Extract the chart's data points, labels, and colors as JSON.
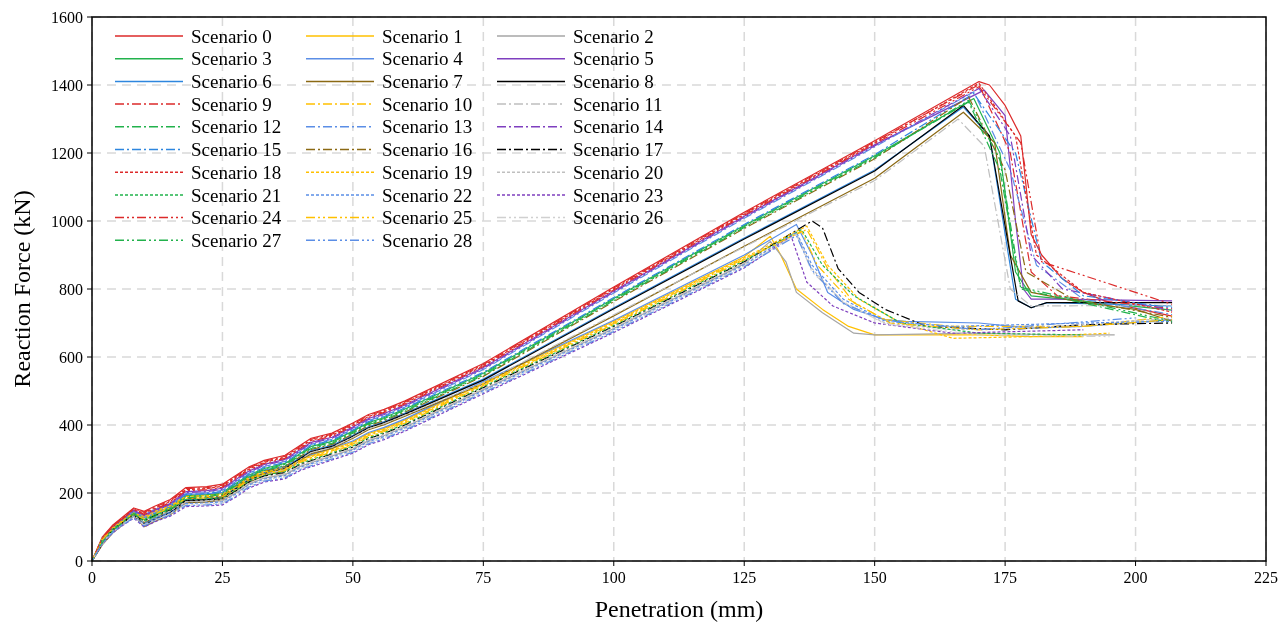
{
  "chart_data": {
    "type": "line",
    "xlabel": "Penetration (mm)",
    "ylabel": "Reaction Force (kN)",
    "xlim": [
      0,
      225
    ],
    "ylim": [
      0,
      1600
    ],
    "xticks": [
      0,
      25,
      50,
      75,
      100,
      125,
      150,
      175,
      200,
      225
    ],
    "yticks": [
      0,
      200,
      400,
      600,
      800,
      1000,
      1200,
      1400,
      1600
    ],
    "grid": true,
    "legend": "top left",
    "series": [
      {
        "name": "Scenario 0",
        "color": "#dc2a2a",
        "line_style": "solid",
        "x": [
          0,
          2,
          4,
          6,
          8,
          10,
          12,
          15,
          18,
          22,
          25,
          28,
          30,
          33,
          37,
          40,
          42,
          46,
          50,
          53,
          56,
          60,
          75,
          100,
          125,
          150,
          170,
          172,
          175,
          178,
          180,
          182,
          186,
          190,
          195,
          207
        ],
        "values": [
          0,
          71,
          106,
          131,
          156,
          146,
          161,
          181,
          216,
          219,
          226,
          256,
          276,
          296,
          311,
          341,
          361,
          376,
          406,
          431,
          446,
          471,
          581,
          806,
          1026,
          1236,
          1410,
          1400,
          1340,
          1250,
          960,
          900,
          830,
          790,
          760,
          720
        ]
      },
      {
        "name": "Scenario 1",
        "color": "#ffc000",
        "line_style": "solid",
        "x": [
          0,
          2,
          4,
          6,
          8,
          10,
          12,
          15,
          18,
          22,
          25,
          28,
          30,
          33,
          37,
          40,
          42,
          46,
          50,
          53,
          56,
          60,
          75,
          100,
          125,
          130,
          132,
          135,
          140,
          145,
          150,
          160,
          170,
          180,
          190
        ],
        "values": [
          0,
          68,
          100,
          123,
          143,
          133,
          148,
          165,
          193,
          195,
          198,
          225,
          247,
          265,
          275,
          300,
          310,
          330,
          350,
          375,
          390,
          415,
          525,
          705,
          895,
          955,
          900,
          800,
          740,
          690,
          665,
          665,
          665,
          660,
          660
        ]
      },
      {
        "name": "Scenario 2",
        "color": "#a6a6a6",
        "line_style": "solid",
        "x": [
          0,
          2,
          4,
          6,
          8,
          10,
          12,
          15,
          18,
          22,
          25,
          28,
          30,
          33,
          37,
          40,
          42,
          46,
          50,
          53,
          56,
          60,
          75,
          100,
          125,
          130,
          133,
          135,
          140,
          146,
          150,
          170,
          185,
          196
        ],
        "values": [
          0,
          57,
          89,
          112,
          132,
          112,
          127,
          144,
          172,
          174,
          177,
          204,
          226,
          244,
          254,
          279,
          289,
          309,
          329,
          354,
          369,
          394,
          504,
          684,
          874,
          940,
          880,
          790,
          730,
          670,
          665,
          670,
          665,
          665
        ]
      },
      {
        "name": "Scenario 3",
        "color": "#22b24c",
        "line_style": "solid",
        "x": [
          0,
          2,
          4,
          6,
          8,
          10,
          12,
          15,
          18,
          22,
          25,
          28,
          30,
          33,
          37,
          40,
          42,
          46,
          50,
          53,
          56,
          60,
          75,
          100,
          125,
          150,
          169,
          174,
          177,
          180,
          207
        ],
        "values": [
          0,
          58,
          93,
          118,
          143,
          122,
          137,
          157,
          192,
          195,
          202,
          232,
          252,
          272,
          287,
          317,
          337,
          352,
          382,
          407,
          422,
          447,
          552,
          772,
          987,
          1192,
          1360,
          1200,
          850,
          780,
          738
        ]
      },
      {
        "name": "Scenario 4",
        "color": "#5b8ee6",
        "line_style": "solid",
        "x": [
          0,
          2,
          4,
          6,
          8,
          10,
          12,
          15,
          18,
          22,
          25,
          28,
          30,
          33,
          37,
          40,
          42,
          46,
          50,
          53,
          56,
          60,
          75,
          100,
          125,
          135,
          138,
          141,
          146,
          152,
          156,
          170,
          180,
          190,
          207
        ],
        "values": [
          0,
          69,
          101,
          124,
          144,
          136,
          151,
          168,
          196,
          198,
          201,
          228,
          250,
          268,
          278,
          303,
          313,
          333,
          353,
          378,
          393,
          418,
          528,
          708,
          900,
          990,
          900,
          790,
          740,
          710,
          705,
          700,
          685,
          690,
          710
        ]
      },
      {
        "name": "Scenario 5",
        "color": "#7f3fbf",
        "line_style": "solid",
        "x": [
          0,
          2,
          4,
          6,
          8,
          10,
          12,
          15,
          18,
          22,
          25,
          28,
          30,
          33,
          37,
          40,
          42,
          46,
          50,
          53,
          56,
          60,
          75,
          100,
          125,
          150,
          171,
          175,
          177,
          178.5,
          180,
          185,
          207
        ],
        "values": [
          0,
          65,
          100,
          125,
          150,
          134,
          149,
          169,
          204,
          207,
          214,
          244,
          264,
          284,
          299,
          329,
          349,
          364,
          394,
          419,
          434,
          459,
          569,
          794,
          1014,
          1224,
          1385,
          1310,
          1000,
          800,
          770,
          770,
          765
        ]
      },
      {
        "name": "Scenario 6",
        "color": "#2e86de",
        "line_style": "solid",
        "x": [
          0,
          2,
          4,
          6,
          8,
          10,
          12,
          15,
          18,
          22,
          25,
          28,
          30,
          33,
          37,
          40,
          42,
          46,
          50,
          53,
          56,
          60,
          75,
          100,
          125,
          150,
          167,
          172,
          177,
          180,
          183,
          207
        ],
        "values": [
          0,
          52,
          87,
          112,
          137,
          110,
          125,
          145,
          180,
          183,
          190,
          220,
          240,
          260,
          275,
          305,
          325,
          340,
          370,
          395,
          410,
          435,
          535,
          745,
          950,
          1150,
          1335,
          1250,
          770,
          745,
          760,
          750
        ]
      },
      {
        "name": "Scenario 7",
        "color": "#8b6914",
        "line_style": "solid",
        "x": [
          0,
          2,
          4,
          6,
          8,
          10,
          12,
          15,
          18,
          22,
          25,
          28,
          30,
          33,
          37,
          40,
          42,
          46,
          50,
          53,
          56,
          60,
          75,
          100,
          125,
          150,
          167,
          173,
          176,
          180,
          190,
          200,
          207
        ],
        "values": [
          0,
          48,
          83,
          108,
          133,
          101,
          116,
          136,
          171,
          174,
          181,
          211,
          231,
          251,
          266,
          296,
          316,
          331,
          361,
          386,
          401,
          426,
          521,
          721,
          926,
          1126,
          1320,
          1230,
          900,
          790,
          760,
          740,
          705
        ]
      },
      {
        "name": "Scenario 8",
        "color": "#000000",
        "line_style": "solid",
        "x": [
          0,
          2,
          4,
          6,
          8,
          10,
          12,
          15,
          18,
          22,
          25,
          28,
          30,
          33,
          37,
          40,
          42,
          46,
          50,
          53,
          56,
          60,
          75,
          100,
          125,
          150,
          167,
          172,
          177.5,
          180,
          183,
          207
        ],
        "values": [
          0,
          51,
          86,
          111,
          136,
          107,
          122,
          142,
          177,
          180,
          187,
          217,
          237,
          257,
          272,
          302,
          322,
          337,
          367,
          392,
          407,
          432,
          532,
          742,
          947,
          1147,
          1340,
          1250,
          765,
          745,
          760,
          760
        ]
      },
      {
        "name": "Scenario 9",
        "color": "#dc2a2a",
        "line_style": "dashdot",
        "x": [
          0,
          2,
          4,
          6,
          8,
          10,
          12,
          15,
          18,
          22,
          25,
          28,
          30,
          33,
          37,
          40,
          42,
          46,
          50,
          53,
          56,
          60,
          75,
          100,
          125,
          150,
          170,
          176,
          180,
          185,
          207
        ],
        "values": [
          0,
          69,
          104,
          129,
          154,
          143,
          158,
          178,
          213,
          216,
          223,
          253,
          273,
          293,
          308,
          338,
          358,
          373,
          403,
          428,
          443,
          468,
          578,
          803,
          1023,
          1233,
          1401,
          1200,
          850,
          780,
          742
        ]
      },
      {
        "name": "Scenario 10",
        "color": "#ffc000",
        "line_style": "dashdot",
        "x": [
          0,
          2,
          4,
          6,
          8,
          10,
          12,
          15,
          18,
          22,
          25,
          28,
          30,
          33,
          37,
          40,
          42,
          46,
          50,
          53,
          56,
          60,
          75,
          100,
          125,
          137,
          141,
          146,
          152,
          165,
          190,
          207
        ],
        "values": [
          0,
          65,
          97,
          120,
          140,
          127,
          142,
          159,
          187,
          189,
          192,
          219,
          241,
          259,
          269,
          294,
          304,
          324,
          344,
          369,
          384,
          409,
          519,
          699,
          889,
          975,
          860,
          760,
          710,
          690,
          690,
          720
        ]
      },
      {
        "name": "Scenario 11",
        "color": "#bfbfbf",
        "line_style": "dashdot",
        "x": [
          0,
          2,
          4,
          6,
          8,
          10,
          12,
          15,
          18,
          22,
          25,
          28,
          30,
          33,
          37,
          40,
          42,
          46,
          50,
          53,
          56,
          60,
          75,
          100,
          125,
          150,
          166,
          171,
          176,
          180,
          207
        ],
        "values": [
          0,
          49,
          84,
          109,
          134,
          104,
          119,
          139,
          174,
          177,
          184,
          214,
          234,
          254,
          269,
          299,
          319,
          334,
          364,
          389,
          404,
          429,
          524,
          724,
          924,
          1119,
          1300,
          1220,
          800,
          750,
          752
        ]
      },
      {
        "name": "Scenario 12",
        "color": "#22b24c",
        "line_style": "dashdot",
        "x": [
          0,
          2,
          4,
          6,
          8,
          10,
          12,
          15,
          18,
          22,
          25,
          28,
          30,
          33,
          37,
          40,
          42,
          46,
          50,
          53,
          56,
          60,
          75,
          100,
          125,
          150,
          168,
          174,
          178,
          207
        ],
        "values": [
          0,
          57,
          92,
          117,
          142,
          119,
          134,
          154,
          189,
          192,
          199,
          229,
          249,
          269,
          284,
          314,
          334,
          349,
          379,
          404,
          419,
          444,
          549,
          769,
          984,
          1189,
          1350,
          1150,
          800,
          700
        ]
      },
      {
        "name": "Scenario 13",
        "color": "#5b8ee6",
        "line_style": "dashdot",
        "x": [
          0,
          2,
          4,
          6,
          8,
          10,
          12,
          15,
          18,
          22,
          25,
          28,
          30,
          33,
          37,
          40,
          42,
          46,
          50,
          53,
          56,
          60,
          75,
          100,
          125,
          150,
          169,
          176,
          181,
          190,
          207
        ],
        "values": [
          0,
          62,
          97,
          122,
          147,
          128,
          143,
          163,
          198,
          201,
          208,
          238,
          258,
          278,
          293,
          323,
          343,
          358,
          388,
          413,
          428,
          453,
          563,
          788,
          1008,
          1218,
          1380,
          1150,
          870,
          770,
          725
        ]
      },
      {
        "name": "Scenario 14",
        "color": "#7f3fbf",
        "line_style": "dashdot",
        "x": [
          0,
          2,
          4,
          6,
          8,
          10,
          12,
          15,
          18,
          22,
          25,
          28,
          30,
          33,
          37,
          40,
          42,
          46,
          50,
          53,
          56,
          60,
          75,
          100,
          125,
          150,
          170,
          176,
          180,
          186,
          207
        ],
        "values": [
          0,
          63,
          98,
          123,
          148,
          131,
          146,
          166,
          201,
          204,
          211,
          241,
          261,
          281,
          296,
          326,
          346,
          361,
          391,
          416,
          431,
          456,
          566,
          791,
          1011,
          1221,
          1390,
          1250,
          900,
          800,
          737
        ]
      },
      {
        "name": "Scenario 15",
        "color": "#2e86de",
        "line_style": "dashdot",
        "x": [
          0,
          2,
          4,
          6,
          8,
          10,
          12,
          15,
          18,
          22,
          25,
          28,
          30,
          33,
          37,
          40,
          42,
          46,
          50,
          53,
          56,
          60,
          75,
          100,
          125,
          150,
          169,
          177,
          182,
          190,
          207
        ],
        "values": [
          0,
          60,
          95,
          120,
          145,
          125,
          140,
          160,
          195,
          198,
          205,
          235,
          255,
          275,
          290,
          320,
          340,
          355,
          385,
          410,
          425,
          450,
          555,
          775,
          990,
          1195,
          1375,
          1200,
          880,
          780,
          745
        ]
      },
      {
        "name": "Scenario 16",
        "color": "#8b6914",
        "line_style": "dashdot",
        "x": [
          0,
          2,
          4,
          6,
          8,
          10,
          12,
          15,
          18,
          22,
          25,
          28,
          30,
          33,
          37,
          40,
          42,
          46,
          50,
          53,
          56,
          60,
          75,
          100,
          125,
          150,
          168,
          175,
          179,
          188,
          207
        ],
        "values": [
          0,
          54,
          89,
          114,
          139,
          113,
          128,
          148,
          183,
          186,
          193,
          223,
          243,
          263,
          278,
          308,
          328,
          343,
          373,
          398,
          413,
          438,
          543,
          763,
          978,
          1183,
          1365,
          1150,
          850,
          770,
          717
        ]
      },
      {
        "name": "Scenario 17",
        "color": "#000000",
        "line_style": "dashdot",
        "x": [
          0,
          2,
          4,
          6,
          8,
          10,
          12,
          15,
          18,
          22,
          25,
          28,
          30,
          33,
          37,
          40,
          42,
          46,
          50,
          53,
          56,
          60,
          75,
          100,
          125,
          138,
          140,
          143,
          147,
          152,
          160,
          175,
          190,
          207
        ],
        "values": [
          0,
          60,
          92,
          115,
          135,
          118,
          133,
          150,
          178,
          180,
          183,
          210,
          232,
          250,
          260,
          285,
          295,
          315,
          335,
          360,
          375,
          400,
          510,
          690,
          880,
          1000,
          980,
          860,
          790,
          740,
          690,
          680,
          695,
          700
        ]
      },
      {
        "name": "Scenario 18",
        "color": "#dc2a2a",
        "line_style": "dotted",
        "x": [
          0,
          2,
          4,
          6,
          8,
          10,
          12,
          15,
          18,
          22,
          25,
          28,
          30,
          33,
          37,
          40,
          42,
          46,
          50,
          53,
          56,
          60,
          75,
          100,
          125,
          150,
          170,
          177,
          181,
          190,
          207
        ],
        "values": [
          0,
          68,
          103,
          128,
          153,
          140,
          155,
          175,
          210,
          213,
          220,
          250,
          270,
          290,
          305,
          335,
          355,
          370,
          400,
          425,
          440,
          465,
          575,
          800,
          1020,
          1230,
          1405,
          1250,
          900,
          790,
          732
        ]
      },
      {
        "name": "Scenario 19",
        "color": "#ffc000",
        "line_style": "dotted",
        "x": [
          0,
          2,
          4,
          6,
          8,
          10,
          12,
          15,
          18,
          22,
          25,
          28,
          30,
          33,
          37,
          40,
          42,
          46,
          50,
          53,
          56,
          60,
          75,
          100,
          125,
          137,
          141,
          147,
          155,
          165,
          180,
          195
        ],
        "values": [
          0,
          66,
          98,
          121,
          141,
          130,
          145,
          162,
          190,
          192,
          195,
          222,
          244,
          262,
          272,
          297,
          307,
          327,
          347,
          372,
          387,
          412,
          522,
          702,
          892,
          985,
          870,
          770,
          700,
          655,
          660,
          670
        ]
      },
      {
        "name": "Scenario 20",
        "color": "#bfbfbf",
        "line_style": "dotted",
        "x": [
          0,
          2,
          4,
          6,
          8,
          10,
          12,
          15,
          18,
          22,
          25,
          28,
          30,
          33,
          37,
          40,
          42,
          46,
          50,
          53,
          56,
          60,
          75,
          100,
          125,
          135,
          138,
          144,
          152,
          165,
          185,
          207
        ],
        "values": [
          0,
          58,
          90,
          113,
          133,
          115,
          130,
          147,
          175,
          177,
          180,
          207,
          229,
          247,
          257,
          282,
          292,
          312,
          332,
          357,
          372,
          397,
          507,
          687,
          877,
          963,
          860,
          760,
          700,
          680,
          690,
          715
        ]
      },
      {
        "name": "Scenario 21",
        "color": "#22b24c",
        "line_style": "dotted",
        "x": [
          0,
          2,
          4,
          6,
          8,
          10,
          12,
          15,
          18,
          22,
          25,
          28,
          30,
          33,
          37,
          40,
          42,
          46,
          50,
          53,
          56,
          60,
          75,
          100,
          125,
          136,
          140,
          146,
          155,
          170,
          190
        ],
        "values": [
          0,
          62,
          94,
          117,
          137,
          121,
          136,
          153,
          181,
          183,
          186,
          213,
          235,
          253,
          263,
          288,
          298,
          318,
          338,
          363,
          378,
          403,
          513,
          693,
          883,
          975,
          870,
          780,
          700,
          670,
          665
        ]
      },
      {
        "name": "Scenario 22",
        "color": "#5b8ee6",
        "line_style": "dotted",
        "x": [
          0,
          2,
          4,
          6,
          8,
          10,
          12,
          15,
          18,
          22,
          25,
          28,
          30,
          33,
          37,
          40,
          42,
          46,
          50,
          53,
          56,
          60,
          75,
          100,
          125,
          135,
          138,
          144,
          152,
          165,
          190,
          207
        ],
        "values": [
          0,
          55,
          87,
          110,
          130,
          109,
          124,
          141,
          169,
          171,
          174,
          201,
          223,
          241,
          251,
          276,
          286,
          306,
          326,
          351,
          366,
          391,
          501,
          681,
          871,
          967,
          870,
          770,
          705,
          690,
          700,
          705
        ]
      },
      {
        "name": "Scenario 23",
        "color": "#7f3fbf",
        "line_style": "dotted",
        "x": [
          0,
          2,
          4,
          6,
          8,
          10,
          12,
          15,
          18,
          22,
          25,
          28,
          30,
          33,
          37,
          40,
          42,
          46,
          50,
          53,
          56,
          60,
          75,
          100,
          125,
          134,
          137,
          142,
          150,
          165,
          190
        ],
        "values": [
          0,
          51,
          83,
          106,
          126,
          100,
          115,
          132,
          160,
          162,
          165,
          192,
          214,
          232,
          242,
          267,
          277,
          297,
          317,
          342,
          357,
          382,
          492,
          672,
          862,
          955,
          820,
          750,
          700,
          670,
          680
        ]
      },
      {
        "name": "Scenario 24",
        "color": "#dc2a2a",
        "line_style": "dashdotdot",
        "x": [
          0,
          2,
          4,
          6,
          8,
          10,
          12,
          15,
          18,
          22,
          25,
          28,
          30,
          33,
          37,
          40,
          42,
          46,
          50,
          53,
          56,
          60,
          75,
          100,
          125,
          150,
          170,
          178,
          182,
          207
        ],
        "values": [
          0,
          66,
          101,
          126,
          151,
          137,
          152,
          172,
          207,
          210,
          217,
          247,
          267,
          287,
          302,
          332,
          352,
          367,
          397,
          422,
          437,
          462,
          572,
          797,
          1017,
          1227,
          1395,
          1230,
          880,
          755
        ]
      },
      {
        "name": "Scenario 25",
        "color": "#ffc000",
        "line_style": "dashdotdot",
        "x": [
          0,
          2,
          4,
          6,
          8,
          10,
          12,
          15,
          18,
          22,
          25,
          28,
          30,
          33,
          37,
          40,
          42,
          46,
          50,
          53,
          56,
          60,
          75,
          100,
          125,
          136,
          139,
          145,
          153,
          170,
          190,
          207
        ],
        "values": [
          0,
          63,
          95,
          118,
          138,
          124,
          139,
          156,
          184,
          186,
          189,
          216,
          238,
          256,
          266,
          291,
          301,
          321,
          341,
          366,
          381,
          406,
          516,
          696,
          886,
          970,
          870,
          770,
          700,
          680,
          690,
          710
        ]
      },
      {
        "name": "Scenario 26",
        "color": "#d0d0d0",
        "line_style": "dashdotdot",
        "x": [
          0,
          2,
          4,
          6,
          8,
          10,
          12,
          15,
          18,
          22,
          25,
          28,
          30,
          33,
          37,
          40,
          42,
          46,
          50,
          53,
          56,
          60,
          75,
          100,
          125,
          135,
          138,
          144,
          152,
          170,
          195
        ],
        "values": [
          0,
          54,
          86,
          109,
          129,
          106,
          121,
          138,
          166,
          168,
          171,
          198,
          220,
          238,
          248,
          273,
          283,
          303,
          323,
          348,
          363,
          388,
          498,
          678,
          868,
          960,
          850,
          763,
          697,
          665,
          660
        ]
      },
      {
        "name": "Scenario 27",
        "color": "#22b24c",
        "line_style": "dashdotdot",
        "x": [
          0,
          2,
          4,
          6,
          8,
          10,
          12,
          15,
          18,
          22,
          25,
          28,
          30,
          33,
          37,
          40,
          42,
          46,
          50,
          53,
          56,
          60,
          75,
          100,
          125,
          150,
          168,
          174,
          178,
          207
        ],
        "values": [
          0,
          55,
          90,
          115,
          140,
          116,
          131,
          151,
          186,
          189,
          196,
          226,
          246,
          266,
          281,
          311,
          331,
          346,
          376,
          401,
          416,
          441,
          546,
          766,
          981,
          1186,
          1355,
          1180,
          805,
          705
        ]
      },
      {
        "name": "Scenario 28",
        "color": "#5b8ee6",
        "line_style": "dashdotdot",
        "x": [
          0,
          2,
          4,
          6,
          8,
          10,
          12,
          15,
          18,
          22,
          25,
          28,
          30,
          33,
          37,
          40,
          42,
          46,
          50,
          53,
          56,
          60,
          75,
          100,
          125,
          135,
          138,
          144,
          152,
          170,
          200
        ],
        "values": [
          0,
          52,
          84,
          107,
          127,
          103,
          118,
          135,
          163,
          165,
          168,
          195,
          217,
          235,
          245,
          270,
          280,
          300,
          320,
          345,
          360,
          385,
          495,
          675,
          865,
          957,
          855,
          757,
          708,
          680,
          715
        ]
      }
    ]
  }
}
